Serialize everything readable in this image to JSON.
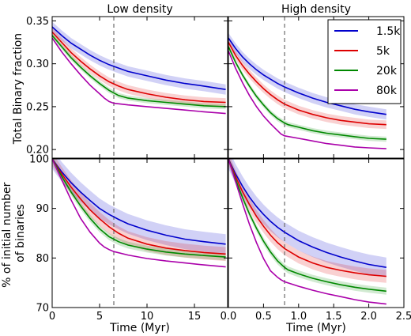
{
  "chart_data": [
    {
      "type": "line",
      "id": "top-left",
      "title": "Low density",
      "ylabel": "Total Binary fraction",
      "xlabel": "",
      "xlim": [
        0,
        18.5
      ],
      "ylim": [
        0.19,
        0.355
      ],
      "xticks": [],
      "yticks": [
        0.2,
        0.25,
        0.3,
        0.35
      ],
      "ytick_labels": [
        "0.20",
        "0.25",
        "0.30",
        "0.35"
      ],
      "vline": 6.5,
      "series": [
        {
          "name": "1.5k",
          "color": "#0000cc",
          "band": 0.006,
          "x": [
            0,
            1,
            2,
            3,
            4,
            5,
            6,
            7,
            8,
            10,
            12,
            14,
            16,
            18.3
          ],
          "y": [
            0.343,
            0.333,
            0.324,
            0.317,
            0.31,
            0.304,
            0.299,
            0.295,
            0.291,
            0.286,
            0.281,
            0.277,
            0.274,
            0.27
          ]
        },
        {
          "name": "5k",
          "color": "#dd0000",
          "band": 0.005,
          "x": [
            0,
            1,
            2,
            3,
            4,
            5,
            6,
            7,
            8,
            10,
            12,
            14,
            16,
            18.3
          ],
          "y": [
            0.337,
            0.325,
            0.313,
            0.303,
            0.294,
            0.286,
            0.279,
            0.274,
            0.27,
            0.265,
            0.261,
            0.258,
            0.256,
            0.255
          ]
        },
        {
          "name": "20k",
          "color": "#008800",
          "band": 0.003,
          "x": [
            0,
            1,
            2,
            3,
            4,
            5,
            6,
            6.5,
            7,
            8,
            10,
            12,
            14,
            16,
            18.3
          ],
          "y": [
            0.333,
            0.32,
            0.307,
            0.296,
            0.286,
            0.277,
            0.269,
            0.266,
            0.263,
            0.26,
            0.257,
            0.255,
            0.253,
            0.251,
            0.25
          ]
        },
        {
          "name": "80k",
          "color": "#aa00aa",
          "band": 0.0,
          "x": [
            0,
            1,
            2,
            3,
            4,
            5,
            5.5,
            6,
            6.5,
            8,
            10,
            12,
            14,
            16,
            18.3
          ],
          "y": [
            0.33,
            0.314,
            0.3,
            0.287,
            0.275,
            0.265,
            0.26,
            0.256,
            0.254,
            0.252,
            0.25,
            0.248,
            0.246,
            0.244,
            0.242
          ]
        }
      ]
    },
    {
      "type": "line",
      "id": "top-right",
      "title": "High density",
      "ylabel": "",
      "xlabel": "",
      "xlim": [
        0,
        2.5
      ],
      "ylim": [
        0.19,
        0.355
      ],
      "xticks": [],
      "yticks": [],
      "ytick_labels": [],
      "vline": 0.8,
      "legend": {
        "position": "top-right",
        "entries": [
          "1.5k",
          "5k",
          "20k",
          "80k"
        ]
      },
      "series": [
        {
          "name": "1.5k",
          "color": "#0000cc",
          "band": 0.006,
          "x": [
            0,
            0.1,
            0.2,
            0.3,
            0.4,
            0.5,
            0.6,
            0.7,
            0.8,
            1.0,
            1.2,
            1.4,
            1.6,
            1.8,
            2.0,
            2.25
          ],
          "y": [
            0.33,
            0.318,
            0.308,
            0.3,
            0.293,
            0.287,
            0.282,
            0.277,
            0.273,
            0.266,
            0.26,
            0.255,
            0.251,
            0.247,
            0.244,
            0.241
          ]
        },
        {
          "name": "5k",
          "color": "#dd0000",
          "band": 0.005,
          "x": [
            0,
            0.1,
            0.2,
            0.3,
            0.4,
            0.5,
            0.6,
            0.7,
            0.8,
            1.0,
            1.2,
            1.4,
            1.6,
            1.8,
            2.0,
            2.25
          ],
          "y": [
            0.325,
            0.31,
            0.298,
            0.288,
            0.279,
            0.271,
            0.264,
            0.258,
            0.253,
            0.246,
            0.241,
            0.237,
            0.234,
            0.232,
            0.23,
            0.229
          ]
        },
        {
          "name": "20k",
          "color": "#008800",
          "band": 0.003,
          "x": [
            0,
            0.1,
            0.2,
            0.3,
            0.4,
            0.5,
            0.6,
            0.7,
            0.8,
            0.85,
            1.0,
            1.2,
            1.4,
            1.6,
            1.8,
            2.0,
            2.25
          ],
          "y": [
            0.32,
            0.302,
            0.287,
            0.274,
            0.262,
            0.252,
            0.243,
            0.236,
            0.231,
            0.229,
            0.226,
            0.222,
            0.219,
            0.217,
            0.215,
            0.213,
            0.212
          ]
        },
        {
          "name": "80k",
          "color": "#aa00aa",
          "band": 0.0,
          "x": [
            0,
            0.1,
            0.2,
            0.3,
            0.4,
            0.5,
            0.6,
            0.7,
            0.75,
            0.8,
            1.0,
            1.2,
            1.4,
            1.6,
            1.8,
            2.0,
            2.25
          ],
          "y": [
            0.315,
            0.295,
            0.278,
            0.263,
            0.25,
            0.239,
            0.23,
            0.222,
            0.218,
            0.216,
            0.213,
            0.21,
            0.207,
            0.205,
            0.203,
            0.202,
            0.201
          ]
        }
      ]
    },
    {
      "type": "line",
      "id": "bottom-left",
      "title": "",
      "ylabel": "% of initial number\nof binaries",
      "xlabel": "Time (Myr)",
      "xlim": [
        0,
        18.5
      ],
      "ylim": [
        70,
        100
      ],
      "xticks": [
        0,
        5,
        10,
        15
      ],
      "xtick_labels": [
        "0",
        "5",
        "10",
        "15"
      ],
      "yticks": [
        70,
        80,
        90,
        100
      ],
      "ytick_labels": [
        "70",
        "80",
        "90",
        "100"
      ],
      "vline": 6.5,
      "series": [
        {
          "name": "1.5k",
          "color": "#0000cc",
          "band": 2.0,
          "x": [
            0,
            1,
            2,
            3,
            4,
            5,
            6,
            7,
            8,
            10,
            12,
            14,
            16,
            18.3
          ],
          "y": [
            100,
            97.4,
            95.2,
            93.3,
            91.6,
            90.0,
            88.8,
            87.8,
            86.9,
            85.6,
            84.6,
            83.8,
            83.3,
            82.8
          ]
        },
        {
          "name": "5k",
          "color": "#dd0000",
          "band": 1.4,
          "x": [
            0,
            1,
            2,
            3,
            4,
            5,
            6,
            7,
            8,
            10,
            12,
            14,
            16,
            18.3
          ],
          "y": [
            100,
            97.0,
            94.3,
            91.9,
            89.7,
            87.9,
            86.3,
            85.0,
            84.0,
            82.8,
            82.0,
            81.5,
            81.1,
            80.8
          ]
        },
        {
          "name": "20k",
          "color": "#008800",
          "band": 0.7,
          "x": [
            0,
            1,
            2,
            3,
            4,
            5,
            6,
            6.5,
            7,
            8,
            10,
            12,
            14,
            16,
            18.3
          ],
          "y": [
            100,
            96.5,
            93.3,
            90.5,
            88.0,
            85.9,
            84.3,
            83.8,
            83.3,
            82.6,
            81.8,
            81.2,
            80.8,
            80.5,
            80.2
          ]
        },
        {
          "name": "80k",
          "color": "#aa00aa",
          "band": 0.0,
          "x": [
            0,
            1,
            2,
            3,
            4,
            5,
            5.5,
            6,
            6.5,
            8,
            10,
            12,
            14,
            16,
            18.3
          ],
          "y": [
            100,
            95.8,
            91.7,
            88.0,
            85.2,
            83.0,
            82.2,
            81.7,
            81.3,
            80.6,
            79.9,
            79.4,
            79.0,
            78.6,
            78.2
          ]
        }
      ]
    },
    {
      "type": "line",
      "id": "bottom-right",
      "title": "",
      "ylabel": "",
      "xlabel": "Time (Myr)",
      "xlim": [
        0,
        2.5
      ],
      "ylim": [
        70,
        100
      ],
      "xticks": [
        0.0,
        0.5,
        1.0,
        1.5,
        2.0,
        2.5
      ],
      "xtick_labels": [
        "0.0",
        "0.5",
        "1.0",
        "1.5",
        "2.0",
        "2.5"
      ],
      "yticks": [],
      "ytick_labels": [],
      "vline": 0.8,
      "series": [
        {
          "name": "1.5k",
          "color": "#0000cc",
          "band": 2.0,
          "x": [
            0,
            0.1,
            0.2,
            0.3,
            0.4,
            0.5,
            0.6,
            0.7,
            0.8,
            1.0,
            1.2,
            1.4,
            1.6,
            1.8,
            2.0,
            2.25
          ],
          "y": [
            100,
            97.0,
            94.5,
            92.3,
            90.4,
            88.8,
            87.4,
            86.2,
            85.2,
            83.5,
            82.2,
            81.1,
            80.2,
            79.4,
            78.7,
            78.1
          ]
        },
        {
          "name": "5k",
          "color": "#dd0000",
          "band": 1.3,
          "x": [
            0,
            0.1,
            0.2,
            0.3,
            0.4,
            0.5,
            0.6,
            0.7,
            0.8,
            1.0,
            1.2,
            1.4,
            1.6,
            1.8,
            2.0,
            2.25
          ],
          "y": [
            100,
            96.5,
            93.4,
            90.8,
            88.4,
            86.4,
            84.6,
            83.1,
            81.9,
            80.2,
            79.0,
            78.1,
            77.5,
            77.0,
            76.6,
            76.3
          ]
        },
        {
          "name": "20k",
          "color": "#008800",
          "band": 0.7,
          "x": [
            0,
            0.1,
            0.2,
            0.3,
            0.4,
            0.5,
            0.6,
            0.7,
            0.8,
            0.85,
            1.0,
            1.2,
            1.4,
            1.6,
            1.8,
            2.0,
            2.25
          ],
          "y": [
            100,
            95.9,
            92.2,
            88.9,
            86.0,
            83.4,
            81.2,
            79.4,
            78.1,
            77.6,
            76.8,
            75.9,
            75.2,
            74.6,
            74.1,
            73.7,
            73.3
          ]
        },
        {
          "name": "80k",
          "color": "#aa00aa",
          "band": 0.0,
          "x": [
            0,
            0.1,
            0.2,
            0.3,
            0.4,
            0.5,
            0.6,
            0.7,
            0.75,
            0.8,
            1.0,
            1.2,
            1.4,
            1.6,
            1.8,
            2.0,
            2.25
          ],
          "y": [
            100,
            95.5,
            91.0,
            86.8,
            83.1,
            79.9,
            77.4,
            76.1,
            75.6,
            75.2,
            74.3,
            73.5,
            72.8,
            72.2,
            71.6,
            71.1,
            70.7
          ]
        }
      ]
    }
  ]
}
